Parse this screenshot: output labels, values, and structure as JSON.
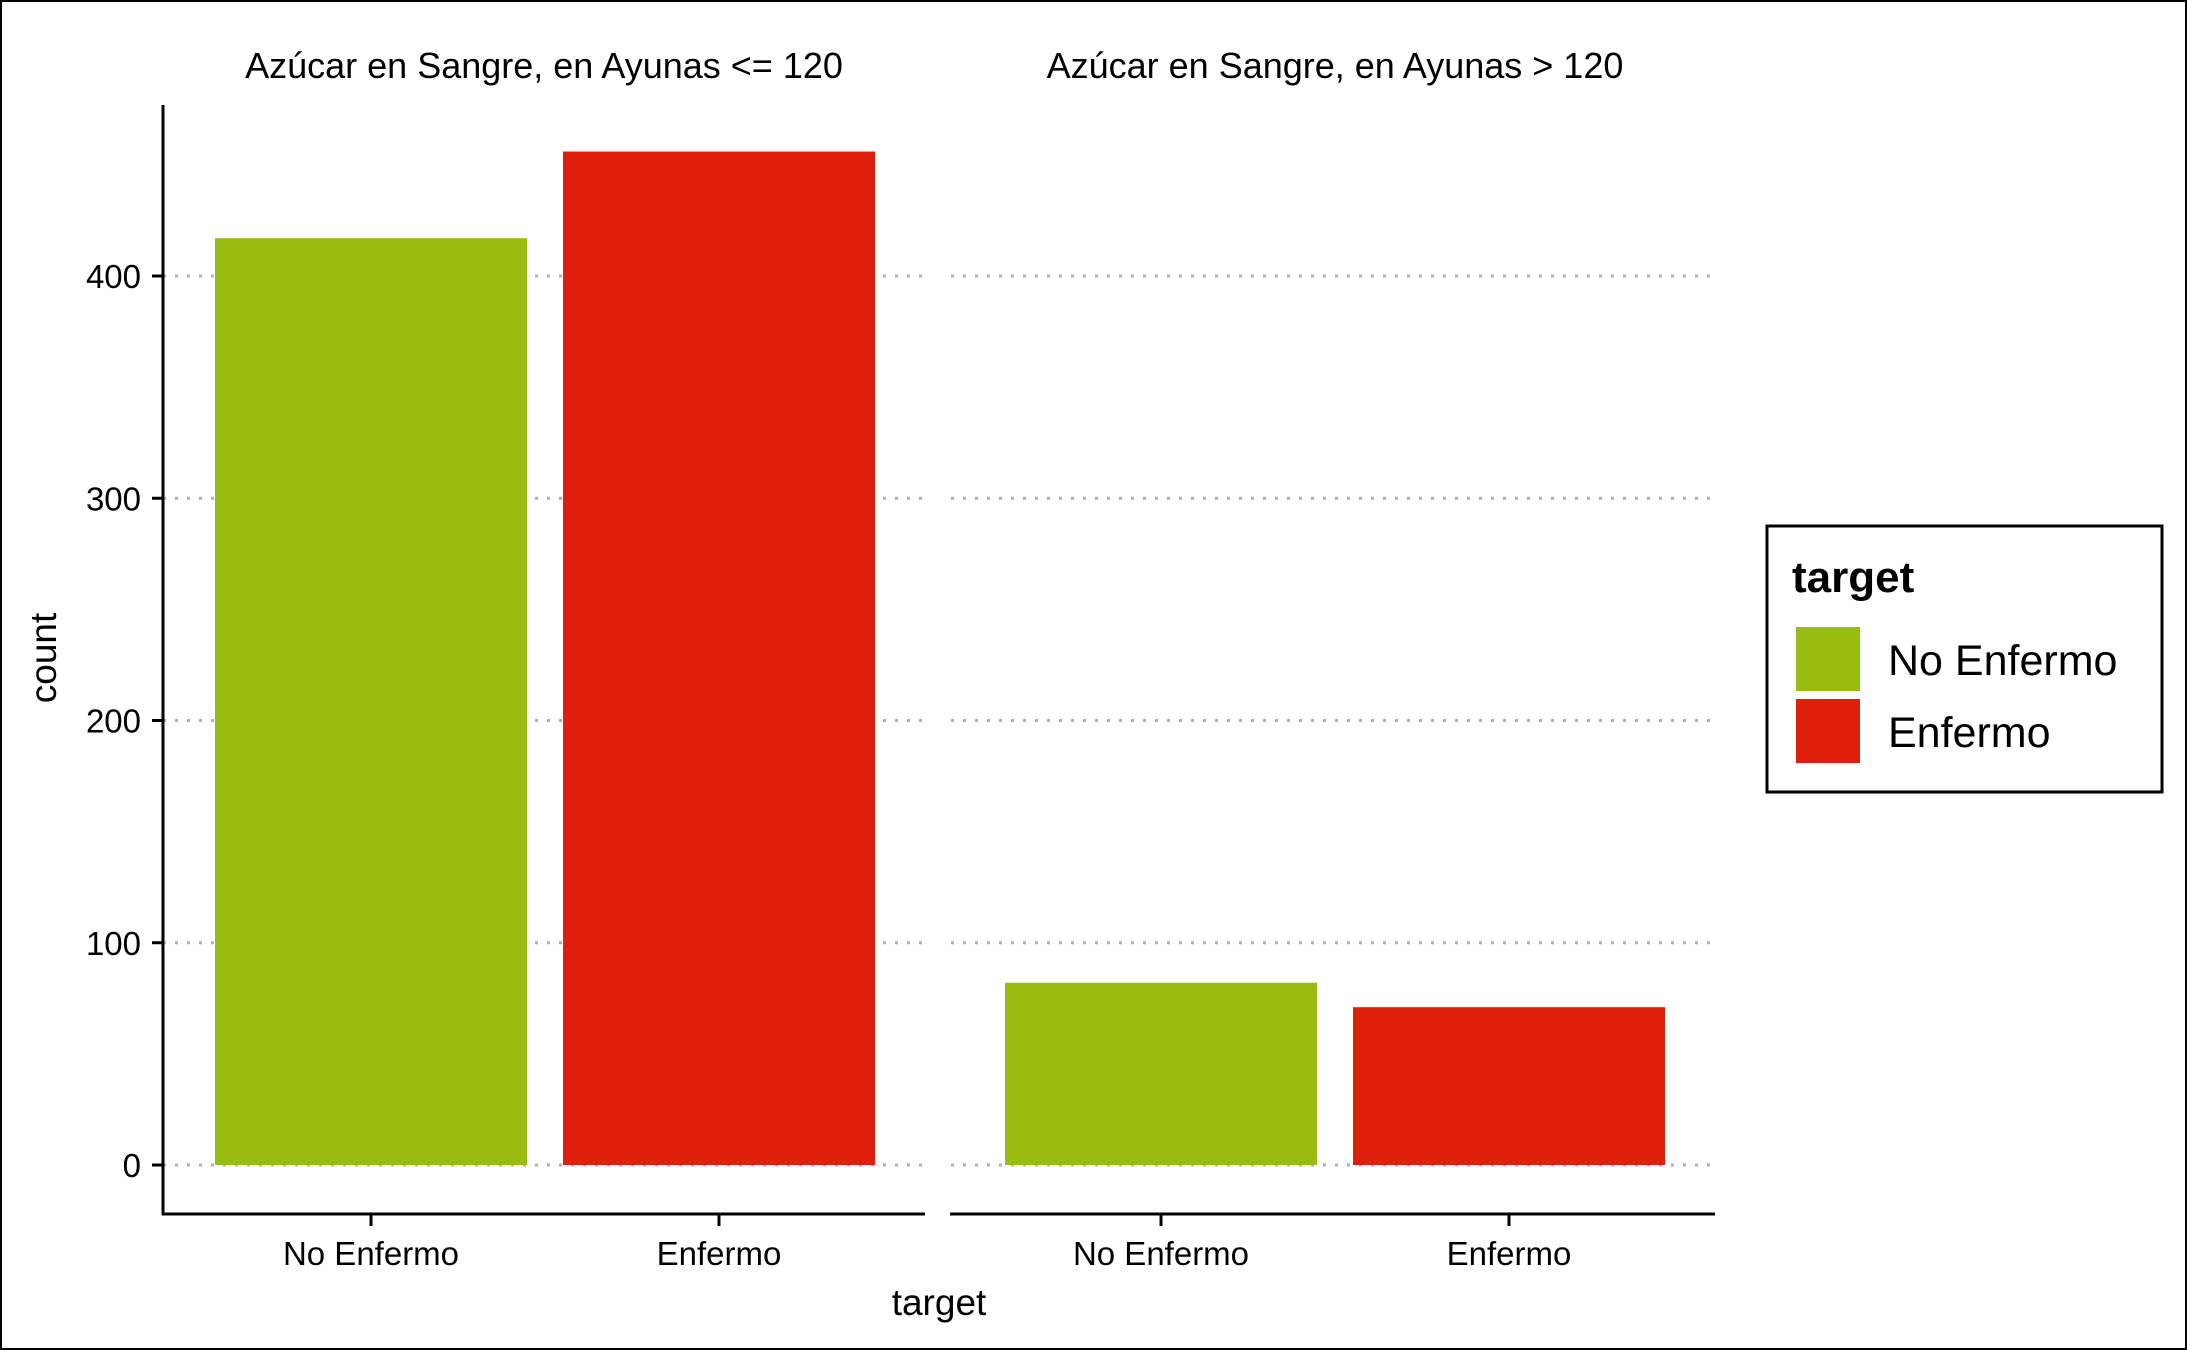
{
  "chart_data": {
    "type": "bar",
    "xlabel": "target",
    "ylabel": "count",
    "ylim": [
      0,
      475
    ],
    "y_ticks": [
      0,
      100,
      200,
      300,
      400
    ],
    "y_tick_labels": [
      "0",
      "100",
      "200",
      "300",
      "400"
    ],
    "grid": "horizontal dotted",
    "categories": [
      "No Enfermo",
      "Enfermo"
    ],
    "panels": [
      {
        "title": "Azúcar en Sangre, en Ayunas <= 120",
        "values": [
          417,
          456
        ]
      },
      {
        "title": "Azúcar en Sangre, en Ayunas > 120",
        "values": [
          82,
          71
        ]
      }
    ],
    "legend": {
      "title": "target",
      "position": "right",
      "entries": [
        {
          "label": "No Enfermo",
          "color": "#99bc12"
        },
        {
          "label": "Enfermo",
          "color": "#dd1f0c"
        }
      ]
    }
  }
}
